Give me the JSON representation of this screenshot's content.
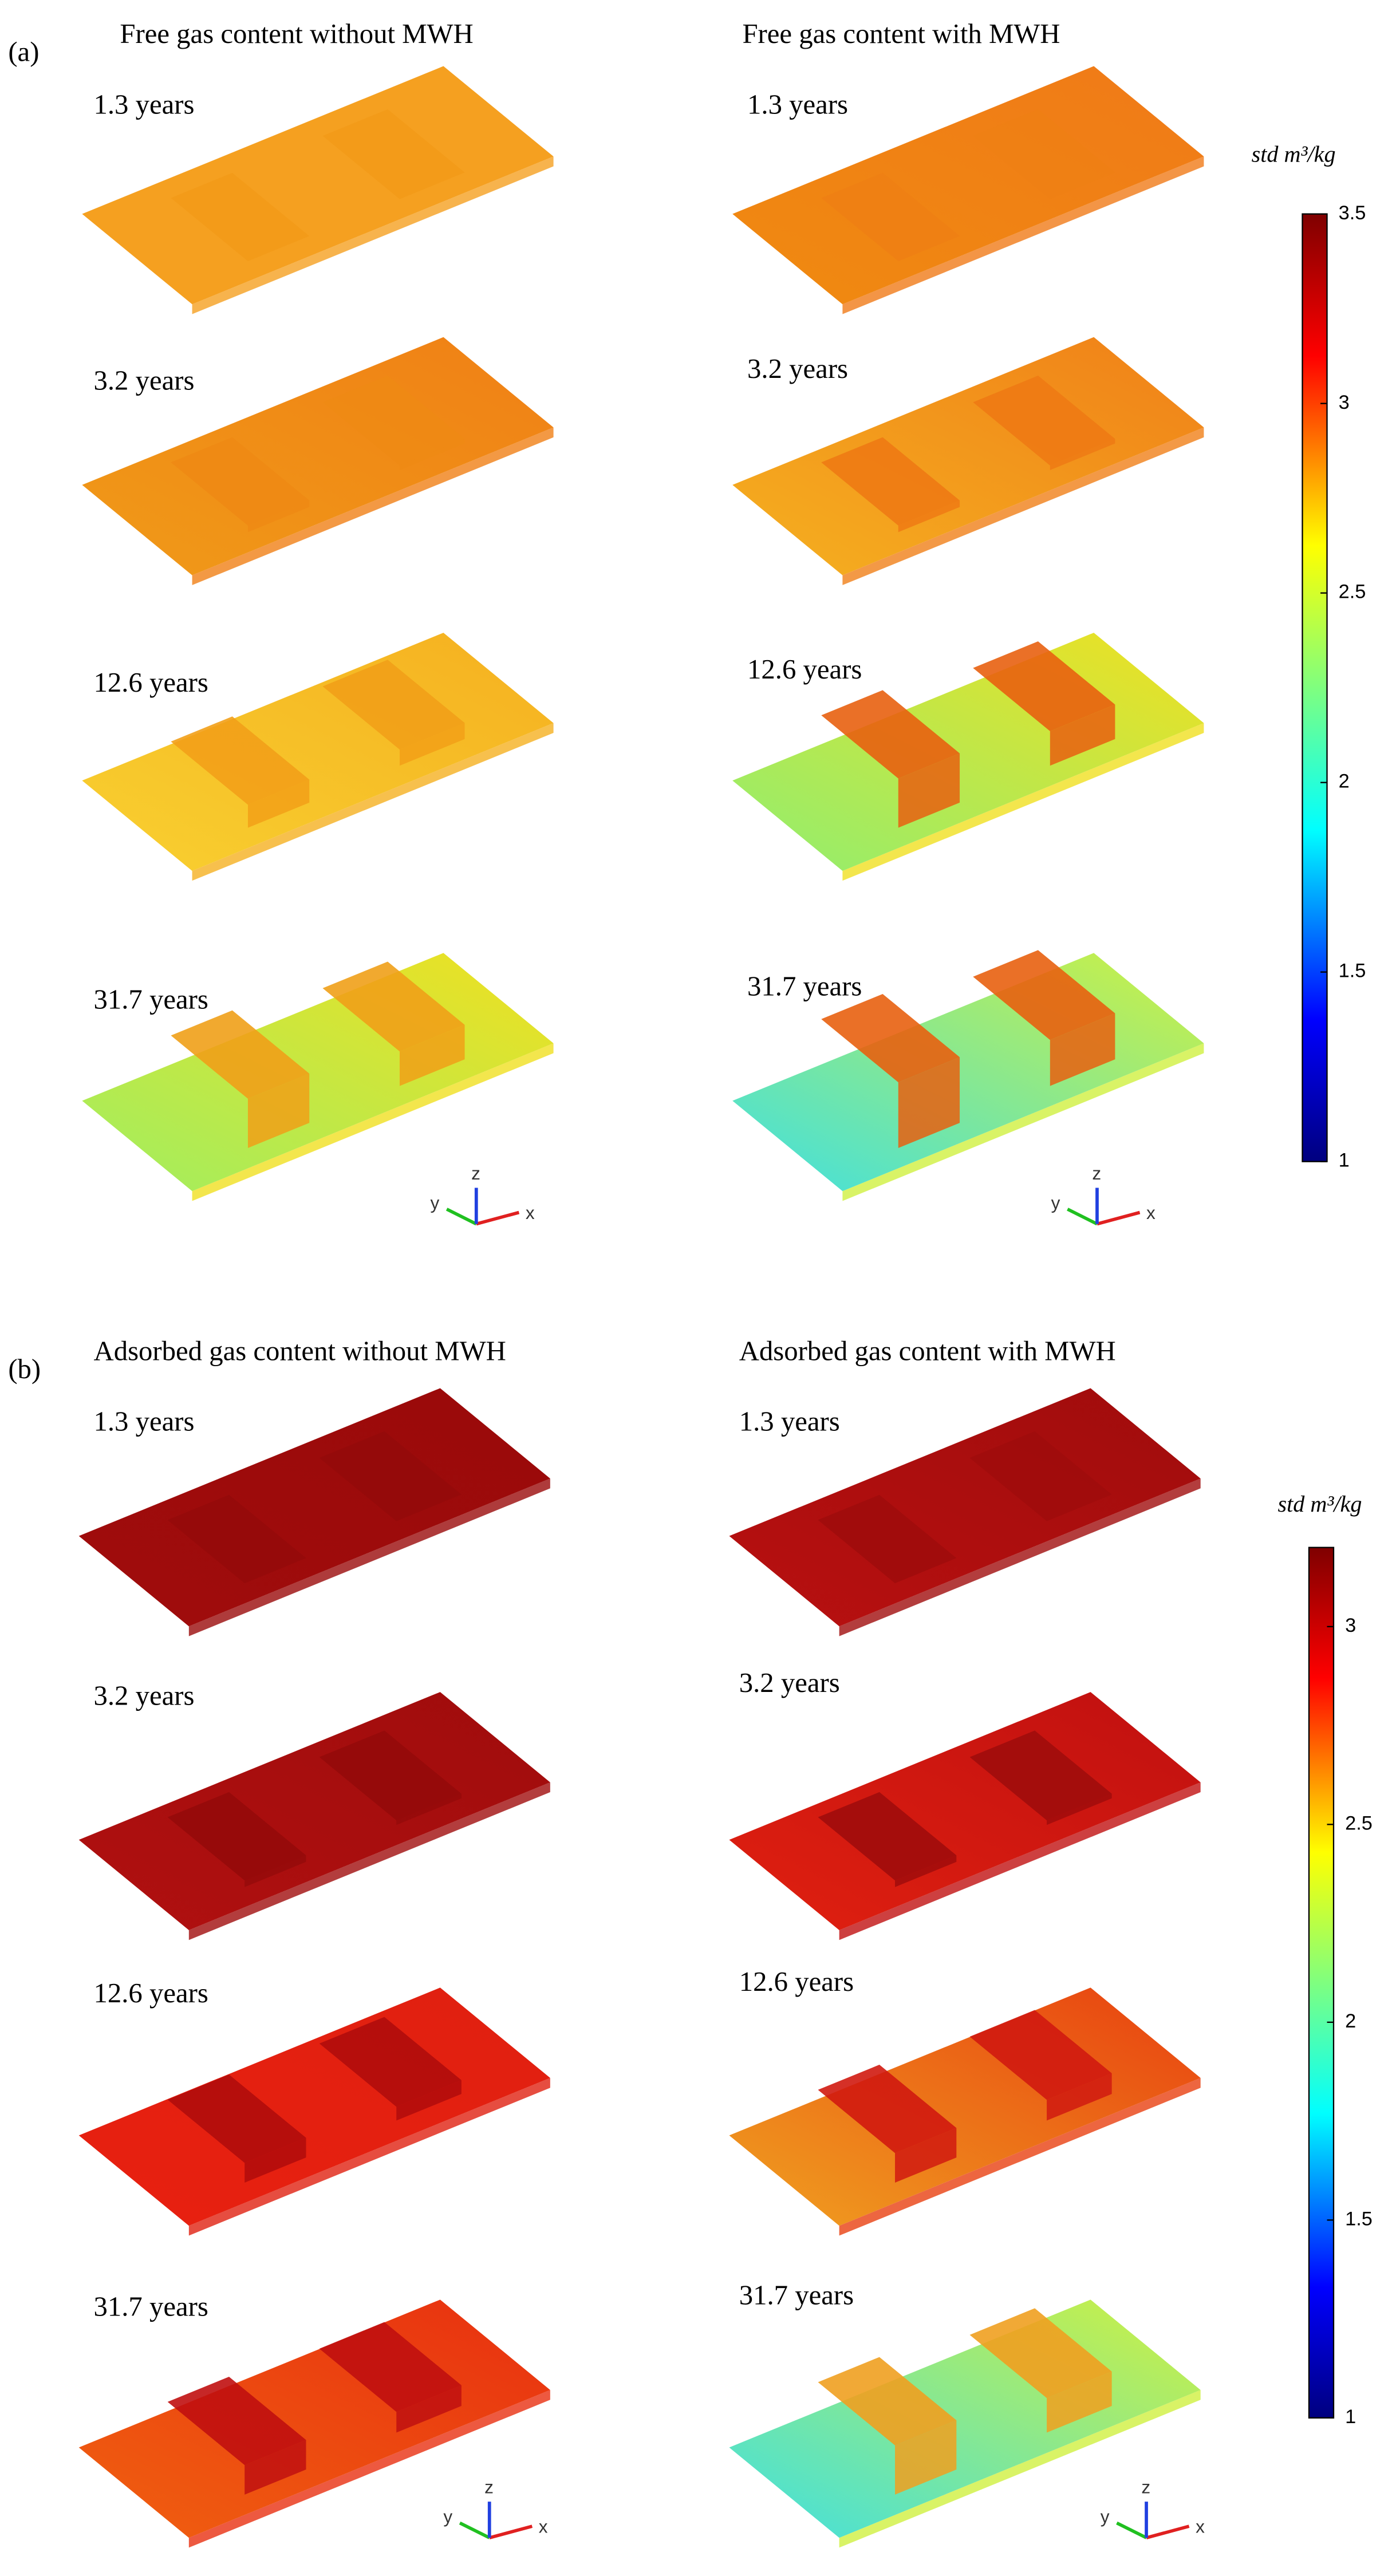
{
  "panels": [
    {
      "label": "(a)",
      "columns": [
        {
          "title": "Free gas content without MWH",
          "times": [
            "1.3 years",
            "3.2 years",
            "12.6 years",
            "31.7 years"
          ]
        },
        {
          "title": "Free gas content with MWH",
          "times": [
            "1.3 years",
            "3.2 years",
            "12.6 years",
            "31.7 years"
          ]
        }
      ],
      "colorbar": {
        "unit": "std m³/kg",
        "lim": [
          1,
          3.5
        ],
        "ticks": [
          1,
          1.5,
          2,
          2.5,
          3,
          3.5
        ]
      },
      "axes": [
        "x",
        "y",
        "z"
      ]
    },
    {
      "label": "(b)",
      "columns": [
        {
          "title": "Adsorbed gas content without MWH",
          "times": [
            "1.3 years",
            "3.2 years",
            "12.6 years",
            "31.7 years"
          ]
        },
        {
          "title": "Adsorbed gas content with MWH",
          "times": [
            "1.3 years",
            "3.2 years",
            "12.6 years",
            "31.7 years"
          ]
        }
      ],
      "colorbar": {
        "unit": "std m³/kg",
        "lim": [
          1,
          3.2
        ],
        "ticks": [
          1,
          1.5,
          2,
          2.5,
          3
        ]
      },
      "axes": [
        "x",
        "y",
        "z"
      ]
    }
  ]
}
